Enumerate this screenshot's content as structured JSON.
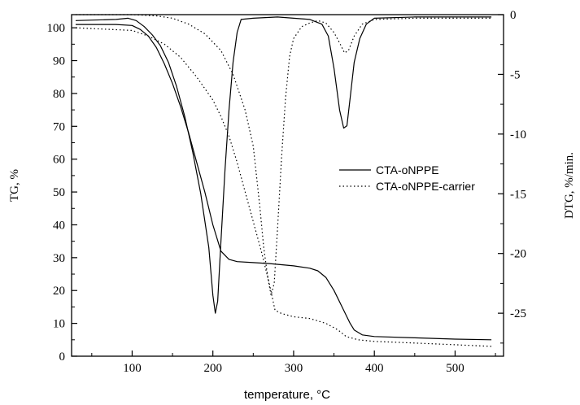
{
  "chart_data": {
    "type": "line",
    "xlabel": "temperature, °C",
    "ylabel_left": "TG, %",
    "ylabel_right": "DTG, %/min.",
    "xlim": [
      25,
      560
    ],
    "ylim_left": [
      0,
      104
    ],
    "ylim_right": [
      -28.6,
      0
    ],
    "x_ticks": [
      100,
      200,
      300,
      400,
      500
    ],
    "y_left_ticks": [
      0,
      10,
      20,
      30,
      40,
      50,
      60,
      70,
      80,
      90,
      100
    ],
    "y_right_ticks": [
      0,
      -5,
      -10,
      -15,
      -20,
      -25
    ],
    "legend": {
      "position": "center-right",
      "entries": [
        {
          "name": "CTA-oNPPE",
          "style": "solid"
        },
        {
          "name": "CTA-oNPPE-carrier",
          "style": "dotted"
        }
      ]
    },
    "series": [
      {
        "name": "CTA-oNPPE",
        "kind": "TG",
        "axis": "left",
        "style": "solid",
        "points": [
          [
            30,
            101
          ],
          [
            80,
            101
          ],
          [
            100,
            100.7
          ],
          [
            110,
            99.5
          ],
          [
            120,
            97.5
          ],
          [
            130,
            94
          ],
          [
            140,
            89
          ],
          [
            150,
            83
          ],
          [
            160,
            76
          ],
          [
            170,
            68
          ],
          [
            180,
            59
          ],
          [
            190,
            50
          ],
          [
            200,
            40
          ],
          [
            210,
            32
          ],
          [
            220,
            29.5
          ],
          [
            230,
            28.8
          ],
          [
            250,
            28.5
          ],
          [
            270,
            28.2
          ],
          [
            300,
            27.5
          ],
          [
            320,
            26.8
          ],
          [
            330,
            26
          ],
          [
            340,
            24
          ],
          [
            350,
            20
          ],
          [
            360,
            15
          ],
          [
            370,
            10
          ],
          [
            375,
            8
          ],
          [
            385,
            6.5
          ],
          [
            400,
            6
          ],
          [
            450,
            5.6
          ],
          [
            500,
            5.2
          ],
          [
            545,
            5
          ]
        ]
      },
      {
        "name": "CTA-oNPPE",
        "kind": "DTG",
        "axis": "right",
        "style": "solid",
        "points": [
          [
            30,
            -0.5
          ],
          [
            80,
            -0.4
          ],
          [
            95,
            -0.3
          ],
          [
            105,
            -0.5
          ],
          [
            115,
            -1
          ],
          [
            125,
            -1.7
          ],
          [
            135,
            -2.6
          ],
          [
            145,
            -4
          ],
          [
            155,
            -6
          ],
          [
            165,
            -8.5
          ],
          [
            175,
            -11.5
          ],
          [
            185,
            -15
          ],
          [
            195,
            -19.5
          ],
          [
            200,
            -23.5
          ],
          [
            203,
            -25
          ],
          [
            206,
            -24
          ],
          [
            210,
            -19
          ],
          [
            215,
            -13
          ],
          [
            220,
            -8
          ],
          [
            225,
            -4
          ],
          [
            230,
            -1.5
          ],
          [
            235,
            -0.4
          ],
          [
            250,
            -0.3
          ],
          [
            280,
            -0.2
          ],
          [
            300,
            -0.3
          ],
          [
            320,
            -0.4
          ],
          [
            335,
            -0.8
          ],
          [
            343,
            -1.8
          ],
          [
            350,
            -4.5
          ],
          [
            357,
            -8
          ],
          [
            362,
            -9.5
          ],
          [
            366,
            -9.3
          ],
          [
            370,
            -7
          ],
          [
            375,
            -4
          ],
          [
            382,
            -2
          ],
          [
            390,
            -0.8
          ],
          [
            400,
            -0.3
          ],
          [
            450,
            -0.2
          ],
          [
            545,
            -0.2
          ]
        ]
      },
      {
        "name": "CTA-oNPPE-carrier",
        "kind": "TG",
        "axis": "left",
        "style": "dotted",
        "points": [
          [
            30,
            100
          ],
          [
            100,
            99.2
          ],
          [
            120,
            97.5
          ],
          [
            140,
            95
          ],
          [
            160,
            91
          ],
          [
            180,
            85
          ],
          [
            200,
            78
          ],
          [
            210,
            73
          ],
          [
            220,
            67
          ],
          [
            230,
            59
          ],
          [
            240,
            50
          ],
          [
            250,
            41
          ],
          [
            260,
            32
          ],
          [
            270,
            22
          ],
          [
            277,
            14
          ],
          [
            285,
            13
          ],
          [
            300,
            12
          ],
          [
            320,
            11.5
          ],
          [
            340,
            10
          ],
          [
            355,
            8
          ],
          [
            365,
            6
          ],
          [
            380,
            5
          ],
          [
            400,
            4.5
          ],
          [
            450,
            4
          ],
          [
            500,
            3.5
          ],
          [
            545,
            3
          ]
        ]
      },
      {
        "name": "CTA-oNPPE-carrier",
        "kind": "DTG",
        "axis": "right",
        "style": "dotted",
        "points": [
          [
            30,
            0
          ],
          [
            100,
            0
          ],
          [
            130,
            -0.1
          ],
          [
            150,
            -0.3
          ],
          [
            170,
            -0.8
          ],
          [
            190,
            -1.6
          ],
          [
            210,
            -3
          ],
          [
            225,
            -5
          ],
          [
            240,
            -8
          ],
          [
            250,
            -11
          ],
          [
            258,
            -16
          ],
          [
            263,
            -19.5
          ],
          [
            268,
            -22
          ],
          [
            272,
            -23.5
          ],
          [
            276,
            -22.5
          ],
          [
            280,
            -18
          ],
          [
            285,
            -12
          ],
          [
            290,
            -7
          ],
          [
            295,
            -3.5
          ],
          [
            300,
            -2
          ],
          [
            310,
            -1
          ],
          [
            320,
            -0.7
          ],
          [
            330,
            -0.5
          ],
          [
            340,
            -0.7
          ],
          [
            350,
            -1.5
          ],
          [
            358,
            -2.5
          ],
          [
            363,
            -3.2
          ],
          [
            368,
            -3
          ],
          [
            375,
            -1.8
          ],
          [
            385,
            -0.8
          ],
          [
            400,
            -0.4
          ],
          [
            450,
            -0.3
          ],
          [
            545,
            -0.3
          ]
        ]
      }
    ]
  }
}
